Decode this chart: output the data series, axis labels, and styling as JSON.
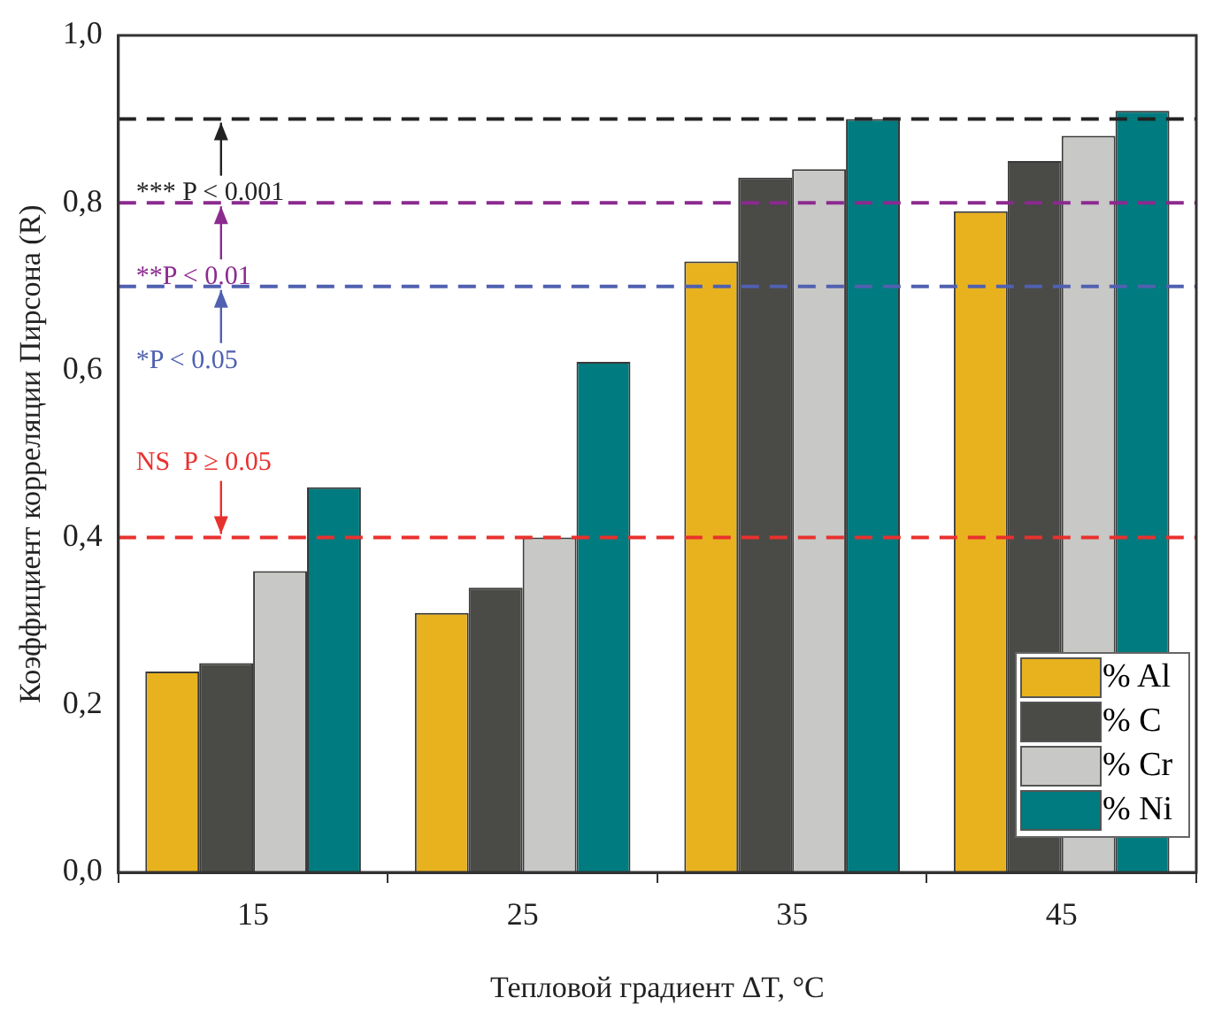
{
  "chart_data": {
    "type": "bar",
    "xlabel": "Тепловой градиент ΔT, °C",
    "ylabel": "Коэффициент корреляции Пирсона (R)",
    "categories": [
      "15",
      "25",
      "35",
      "45"
    ],
    "series": [
      {
        "name": "% Al",
        "color": "#e8b21f",
        "values": [
          0.24,
          0.31,
          0.73,
          0.79
        ]
      },
      {
        "name": "% C",
        "color": "#4a4a46",
        "values": [
          0.25,
          0.34,
          0.83,
          0.85
        ]
      },
      {
        "name": "% Cr",
        "color": "#c8c8c6",
        "values": [
          0.36,
          0.4,
          0.84,
          0.88
        ]
      },
      {
        "name": "% Ni",
        "color": "#007b7f",
        "values": [
          0.46,
          0.61,
          0.9,
          0.91
        ]
      }
    ],
    "ylim": [
      0,
      1
    ],
    "yticks": [
      {
        "value": 0,
        "label": "0,0"
      },
      {
        "value": 0.2,
        "label": "0,2"
      },
      {
        "value": 0.4,
        "label": "0,4"
      },
      {
        "value": 0.6,
        "label": "0,6"
      },
      {
        "value": 0.8,
        "label": "0,8"
      },
      {
        "value": 1,
        "label": "1,0"
      }
    ],
    "ref_lines": [
      {
        "axis": "y",
        "value": 0.9,
        "label": "*** P < 0.001",
        "color": "#222222",
        "line_style": "dashed"
      },
      {
        "axis": "y",
        "value": 0.8,
        "label": "**P < 0.01",
        "color": "#8b2a8f",
        "line_style": "dashed"
      },
      {
        "axis": "y",
        "value": 0.7,
        "label": "*P < 0.05",
        "color": "#5060b0",
        "line_style": "dashed"
      },
      {
        "axis": "y",
        "value": 0.4,
        "label": "NS  P ≥ 0.05",
        "color": "#e8312e",
        "line_style": "dashed"
      }
    ],
    "grid": false,
    "legend": "bottom right"
  }
}
